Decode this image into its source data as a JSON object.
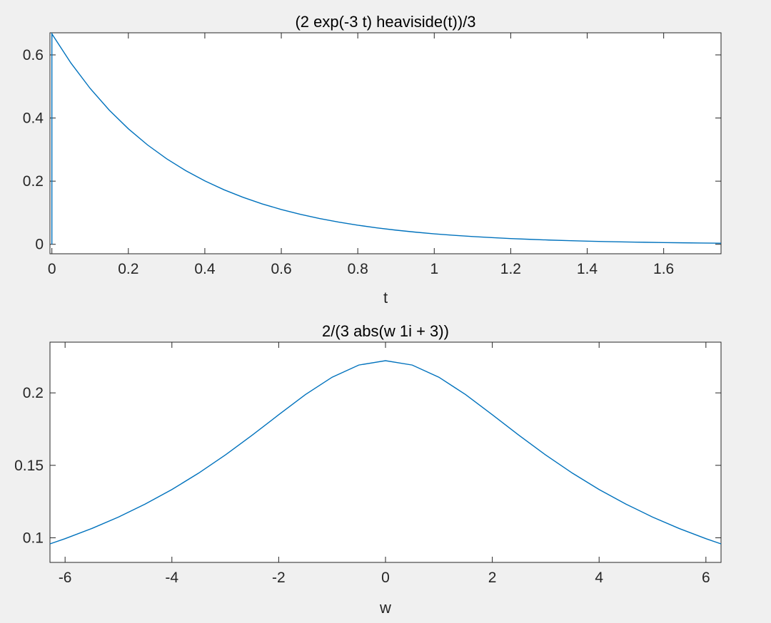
{
  "chart_data": [
    {
      "type": "line",
      "title": "(2 exp(-3 t) heaviside(t))/3",
      "xlabel": "t",
      "ylabel": "",
      "xlim": [
        -0.005,
        1.75
      ],
      "ylim": [
        -0.03,
        0.67
      ],
      "xticks": [
        0,
        0.2,
        0.4,
        0.6,
        0.8,
        1,
        1.2,
        1.4,
        1.6
      ],
      "xtick_labels": [
        "0",
        "0.2",
        "0.4",
        "0.6",
        "0.8",
        "1",
        "1.2",
        "1.4",
        "1.6"
      ],
      "yticks": [
        0,
        0.2,
        0.4,
        0.6
      ],
      "ytick_labels": [
        "0",
        "0.2",
        "0.4",
        "0.6"
      ],
      "grid": false,
      "color": "#0072bd",
      "series": [
        {
          "x": [
            0,
            0,
            0.05,
            0.1,
            0.15,
            0.2,
            0.25,
            0.3,
            0.35,
            0.4,
            0.45,
            0.5,
            0.55,
            0.6,
            0.65,
            0.7,
            0.75,
            0.8,
            0.85,
            0.9,
            0.95,
            1.0,
            1.05,
            1.1,
            1.15,
            1.2,
            1.25,
            1.3,
            1.35,
            1.4,
            1.45,
            1.5,
            1.55,
            1.6,
            1.65,
            1.7,
            1.75
          ],
          "y": [
            0,
            0.6667,
            0.5738,
            0.4939,
            0.4251,
            0.3659,
            0.3149,
            0.271,
            0.2333,
            0.2008,
            0.1728,
            0.1488,
            0.128,
            0.1102,
            0.0949,
            0.0816,
            0.0703,
            0.0605,
            0.0521,
            0.0448,
            0.0386,
            0.0332,
            0.0286,
            0.0246,
            0.0212,
            0.0182,
            0.0157,
            0.0135,
            0.0116,
            0.01,
            0.0086,
            0.0074,
            0.0064,
            0.0055,
            0.0047,
            0.0041,
            0.0035
          ]
        }
      ]
    },
    {
      "type": "line",
      "title": "2/(3 abs(w 1i + 3))",
      "xlabel": "w",
      "ylabel": "",
      "xlim": [
        -6.283,
        6.283
      ],
      "ylim": [
        0.083,
        0.235
      ],
      "xticks": [
        -6,
        -4,
        -2,
        0,
        2,
        4,
        6
      ],
      "xtick_labels": [
        "-6",
        "-4",
        "-2",
        "0",
        "2",
        "4",
        "6"
      ],
      "yticks": [
        0.1,
        0.15,
        0.2
      ],
      "ytick_labels": [
        "0.1",
        "0.15",
        "0.2"
      ],
      "grid": false,
      "color": "#0072bd",
      "series": [
        {
          "x": [
            -6.283,
            -6,
            -5.5,
            -5,
            -4.5,
            -4,
            -3.5,
            -3,
            -2.5,
            -2,
            -1.5,
            -1,
            -0.5,
            0,
            0.5,
            1,
            1.5,
            2,
            2.5,
            3,
            3.5,
            4,
            4.5,
            5,
            5.5,
            6,
            6.283
          ],
          "y": [
            0.0958,
            0.0994,
            0.1064,
            0.1143,
            0.1233,
            0.1333,
            0.1446,
            0.1571,
            0.1707,
            0.1849,
            0.1988,
            0.2108,
            0.2192,
            0.2222,
            0.2192,
            0.2108,
            0.1988,
            0.1849,
            0.1707,
            0.1571,
            0.1446,
            0.1333,
            0.1233,
            0.1143,
            0.1064,
            0.0994,
            0.0958
          ]
        }
      ]
    }
  ]
}
